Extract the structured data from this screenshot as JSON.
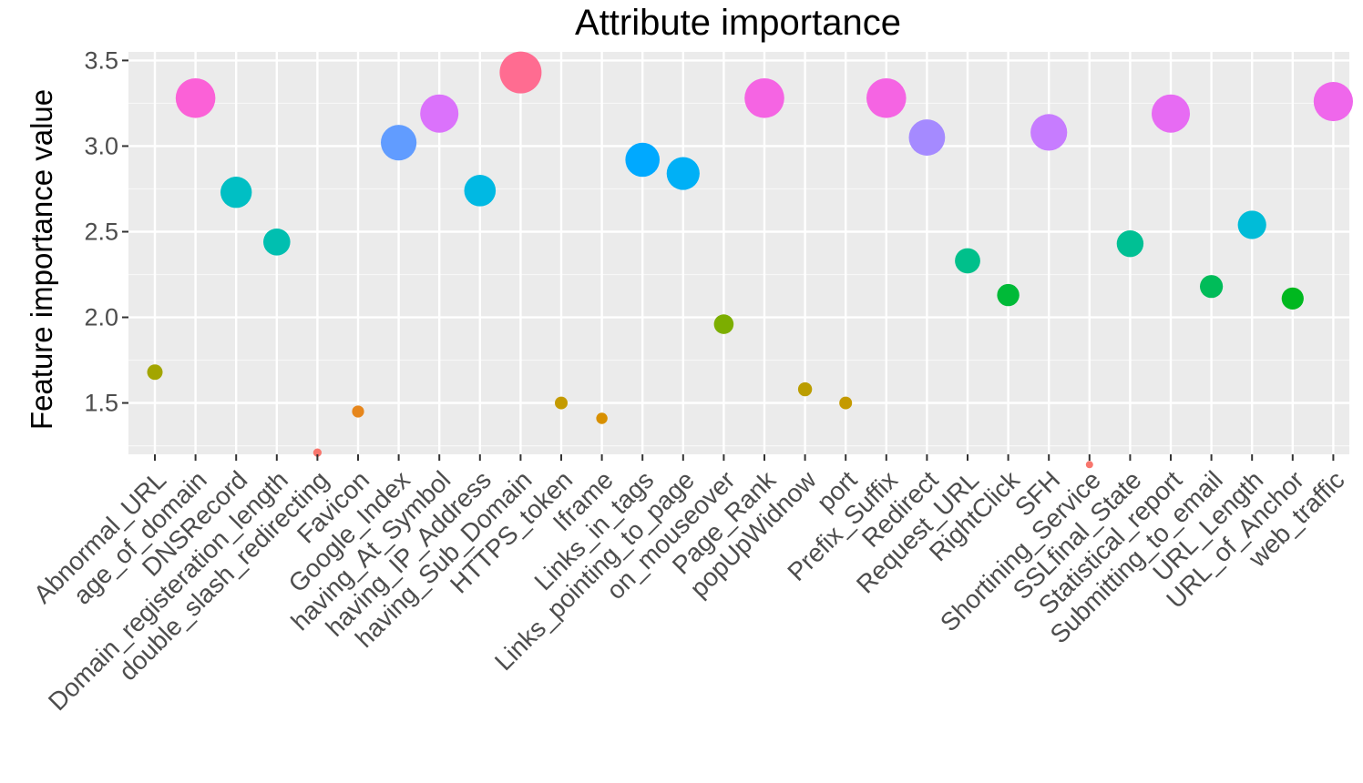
{
  "chart_data": {
    "type": "scatter",
    "title": "Attribute importance",
    "xlabel": "",
    "ylabel": "Feature importance value",
    "ylim": [
      1.2,
      3.55
    ],
    "yticks": [
      "1.5",
      "2.0",
      "2.5",
      "3.0",
      "3.5"
    ],
    "grid": true,
    "legend": "none",
    "categories": [
      "Abnormal_URL",
      "age_of_domain",
      "DNSRecord",
      "Domain_registeration_length",
      "double_slash_redirecting",
      "Favicon",
      "Google_Index",
      "having_At_Symbol",
      "having_IP_Address",
      "having_Sub_Domain",
      "HTTPS_token",
      "Iframe",
      "Links_in_tags",
      "Links_pointing_to_page",
      "on_mouseover",
      "Page_Rank",
      "popUpWidnow",
      "port",
      "Prefix_Suffix",
      "Redirect",
      "Request_URL",
      "RightClick",
      "SFH",
      "Shortining_Service",
      "SSLfinal_State",
      "Statistical_report",
      "Submitting_to_email",
      "URL_Length",
      "URL_of_Anchor",
      "web_traffic"
    ],
    "values": [
      1.68,
      3.28,
      2.73,
      2.44,
      1.21,
      1.45,
      3.02,
      3.19,
      2.74,
      3.43,
      1.5,
      1.41,
      2.92,
      2.84,
      1.96,
      3.28,
      1.58,
      1.5,
      3.28,
      3.05,
      2.33,
      2.13,
      3.08,
      1.14,
      2.43,
      3.19,
      2.18,
      2.54,
      2.11,
      3.26
    ],
    "colors": [
      "#A3A500",
      "#FB61D7",
      "#00BFC4",
      "#00BFB0",
      "#F8766D",
      "#E6861C",
      "#619CFF",
      "#DB72FB",
      "#00B9E3",
      "#FF6C91",
      "#C49A00",
      "#D89000",
      "#00A9FF",
      "#00B0F6",
      "#7CAE00",
      "#F564E3",
      "#BB9D00",
      "#C49A00",
      "#F564E3",
      "#A58AFF",
      "#00C08B",
      "#00BA38",
      "#C77CFF",
      "#F8766D",
      "#00C094",
      "#E76BF3",
      "#00BC59",
      "#00BCD8",
      "#00B81F",
      "#EF67EB"
    ]
  }
}
